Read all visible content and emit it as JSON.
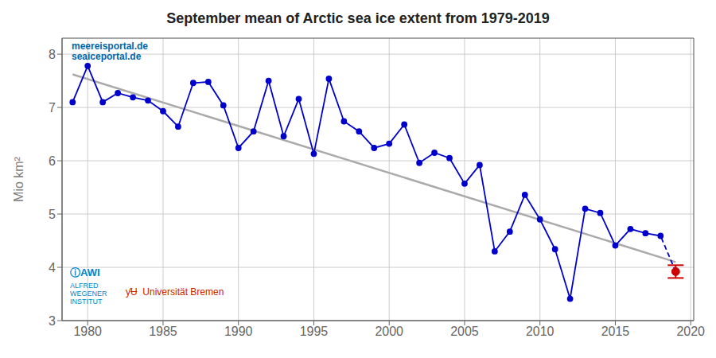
{
  "chart_data": {
    "type": "line",
    "title": "September mean of Arctic sea ice extent from 1979-2019",
    "ylabel": "Mio km²",
    "xlim": [
      1978.3,
      2020.2
    ],
    "xticks": [
      1980,
      1985,
      1990,
      1995,
      2000,
      2005,
      2010,
      2015,
      2020
    ],
    "ylim": [
      3.0,
      8.3
    ],
    "yticks": [
      3,
      4,
      5,
      6,
      7,
      8
    ],
    "grid": true,
    "series": [
      {
        "type": "line",
        "color": "#aaaaaa",
        "marker": "none",
        "line_style": "solid",
        "x": [
          1979,
          2019
        ],
        "values": [
          7.62,
          4.1
        ]
      },
      {
        "type": "line",
        "color": "#0000cc",
        "marker": "circle",
        "line_style": "solid",
        "x": [
          1979,
          1980,
          1981,
          1982,
          1983,
          1984,
          1985,
          1986,
          1987,
          1988,
          1989,
          1990,
          1991,
          1992,
          1993,
          1994,
          1995,
          1996,
          1997,
          1998,
          1999,
          2000,
          2001,
          2002,
          2003,
          2004,
          2005,
          2006,
          2007,
          2008,
          2009,
          2010,
          2011,
          2012,
          2013,
          2014,
          2015,
          2016,
          2017,
          2018
        ],
        "values": [
          7.1,
          7.78,
          7.1,
          7.27,
          7.19,
          7.13,
          6.93,
          6.64,
          7.46,
          7.48,
          7.04,
          6.24,
          6.55,
          7.5,
          6.46,
          7.16,
          6.13,
          7.54,
          6.74,
          6.55,
          6.24,
          6.32,
          6.68,
          5.96,
          6.15,
          6.05,
          5.57,
          5.92,
          4.3,
          4.67,
          5.36,
          4.9,
          4.34,
          3.41,
          5.1,
          5.02,
          4.41,
          4.72,
          4.64,
          4.59
        ]
      },
      {
        "type": "line",
        "color": "#0000cc",
        "marker": "none",
        "line_style": "dashed",
        "x": [
          2018,
          2019
        ],
        "values": [
          4.59,
          3.92
        ]
      },
      {
        "type": "scatter",
        "color": "#cc0000",
        "marker": "circle",
        "x": [
          2019
        ],
        "values": [
          3.92
        ],
        "error": [
          0.12
        ]
      }
    ],
    "annotations": [
      {
        "text": "meereisportal.de",
        "color": "#0066aa"
      },
      {
        "text": "seaiceportal.de",
        "color": "#0066aa"
      },
      {
        "text": "ⓘAWI",
        "color": "#0088cc"
      },
      {
        "text": "ALFRED\nWEGENER\nINSTITUT",
        "color": "#0088cc"
      },
      {
        "text": "ƴɄ  Universität Bremen",
        "color": "#cc2200"
      }
    ]
  }
}
